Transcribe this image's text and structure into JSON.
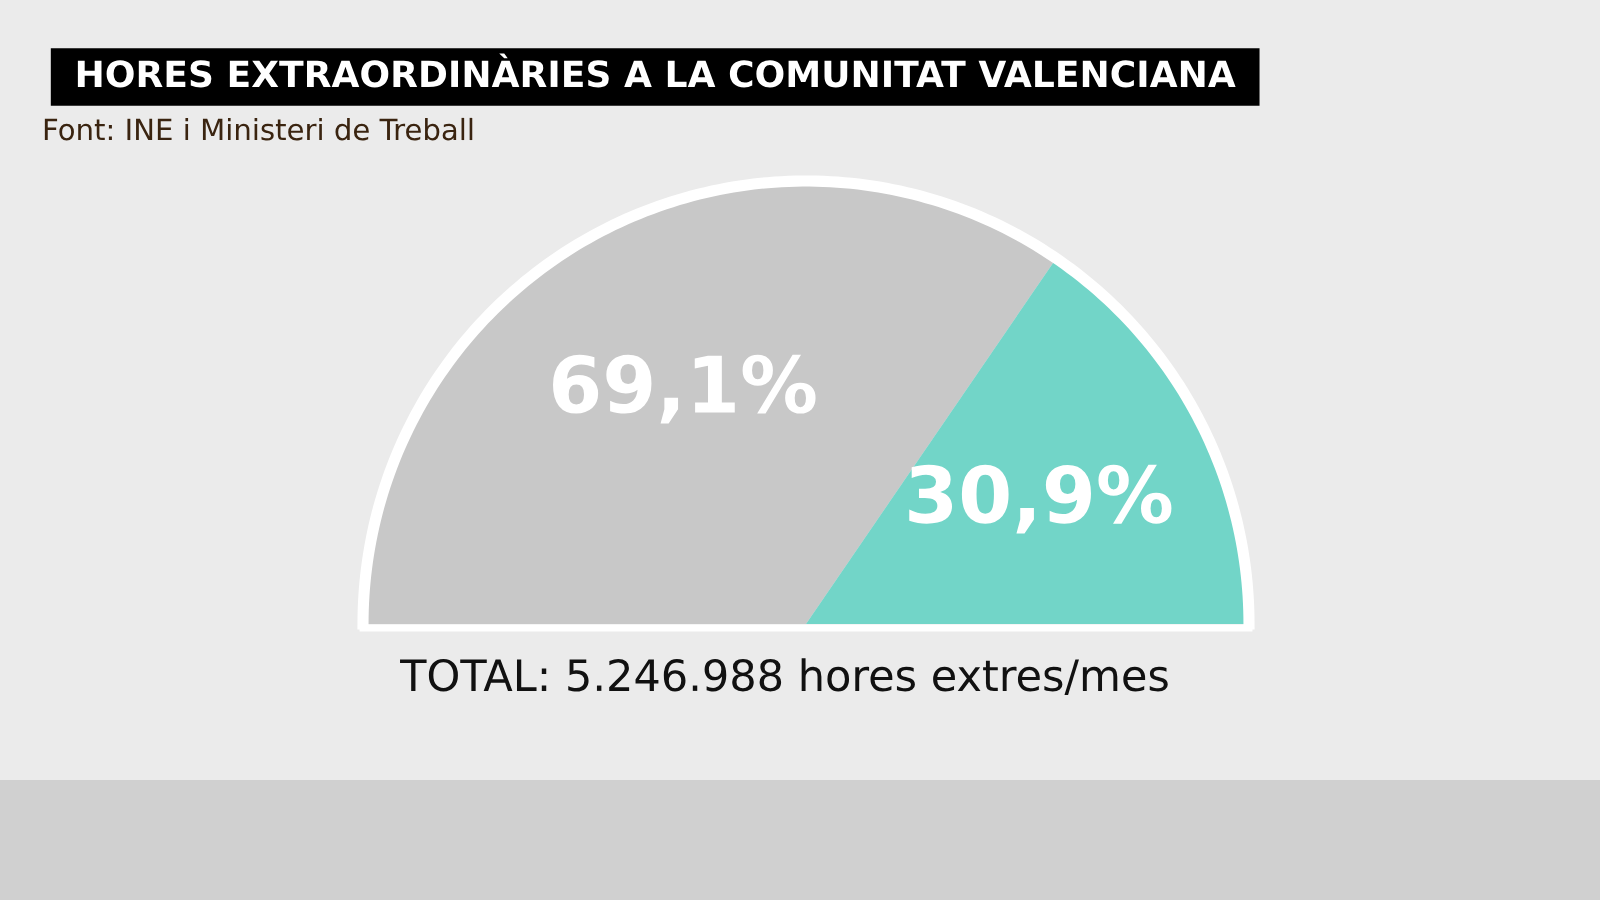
{
  "chart_data": {
    "type": "pie",
    "title": "HORES EXTRAORDINÀRIES A LA COMUNITAT VALENCIANA",
    "categories": [
      null,
      null
    ],
    "values": [
      69.1,
      30.9
    ],
    "colors": [
      "#c8c8c8",
      "#72d5c8"
    ],
    "value_labels": [
      "69,1%",
      "30,9%"
    ],
    "annotations": [
      "Font: INE i Ministeri de Treball",
      "TOTAL: 5.246.988 hores extres/mes"
    ],
    "legend": false
  }
}
